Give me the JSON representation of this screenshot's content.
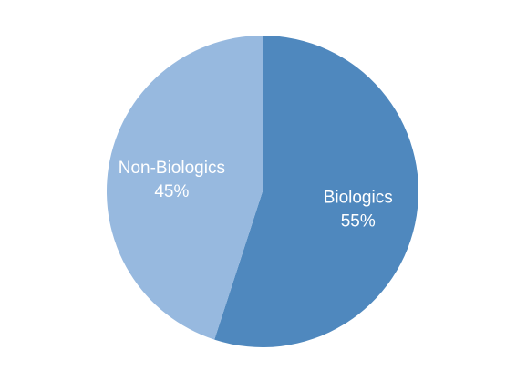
{
  "chart_data": {
    "type": "pie",
    "title": "",
    "slices": [
      {
        "label": "Biologics",
        "value": 55,
        "percent_label": "55%",
        "color": "#4F88BE"
      },
      {
        "label": "Non-Biologics",
        "value": 45,
        "percent_label": "45%",
        "color": "#97B9DF"
      }
    ],
    "legend": "none",
    "start_angle_deg": 0,
    "direction": "clockwise"
  }
}
